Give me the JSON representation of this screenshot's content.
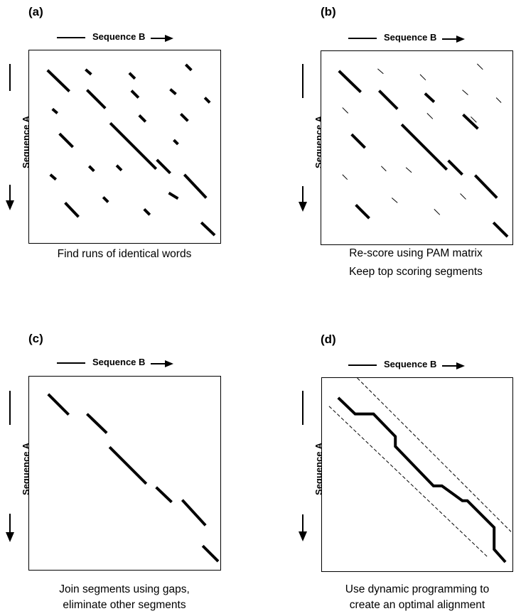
{
  "panels": [
    {
      "id": "a",
      "label": "(a)",
      "axis_b": "Sequence B",
      "axis_a": "Sequence A",
      "caption": [
        "Find runs of identical words"
      ]
    },
    {
      "id": "b",
      "label": "(b)",
      "axis_b": "Sequence B",
      "axis_a": "Sequence A",
      "caption": [
        "Re-score using PAM matrix",
        "Keep top scoring segments"
      ]
    },
    {
      "id": "c",
      "label": "(c)",
      "axis_b": "Sequence B",
      "axis_a": "Sequence A",
      "caption": [
        "Join segments using gaps,",
        "eliminate other segments"
      ]
    },
    {
      "id": "d",
      "label": "(d)",
      "axis_b": "Sequence B",
      "axis_a": "Sequence A",
      "caption": [
        "Use dynamic programming to",
        "create an optimal alignment"
      ]
    }
  ]
}
